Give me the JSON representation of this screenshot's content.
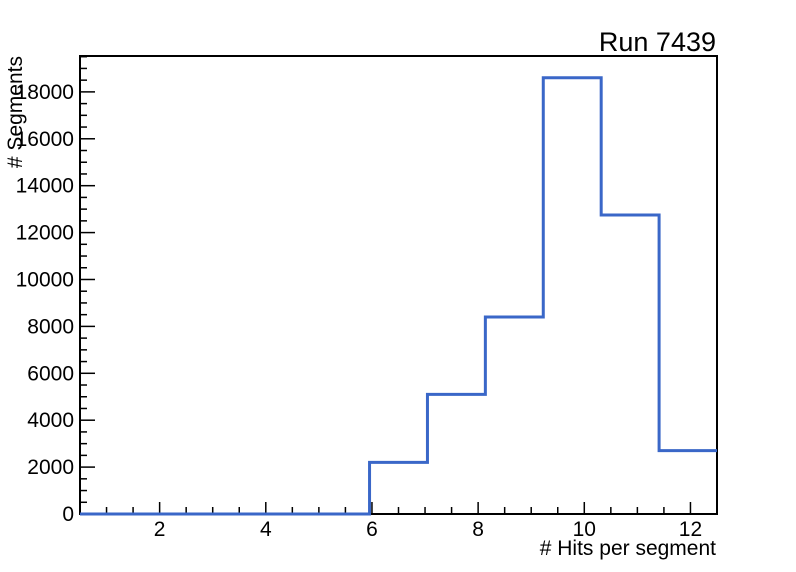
{
  "page": {
    "background": "#ffffff"
  },
  "chart_data": {
    "type": "bar",
    "subtype": "step-histogram-outline",
    "title": "Run 7439",
    "xlabel": "# Hits per segment",
    "ylabel": "# Segments",
    "xlim": [
      0.5,
      12.5
    ],
    "ylim": [
      0,
      19530
    ],
    "grid": false,
    "legend": "none",
    "bin_edges": [
      0.5,
      1.5909,
      2.6818,
      3.7727,
      4.8636,
      5.9545,
      7.0455,
      8.1364,
      9.2273,
      10.3182,
      11.4091,
      12.5
    ],
    "counts": [
      0,
      0,
      0,
      0,
      0,
      2200,
      5100,
      8400,
      18600,
      12750,
      2700
    ],
    "x_tick_labels": [
      2,
      4,
      6,
      8,
      10,
      12
    ],
    "x_minor_tick_step": 0.5,
    "y_tick_labels": [
      0,
      2000,
      4000,
      6000,
      8000,
      10000,
      12000,
      14000,
      16000,
      18000
    ],
    "y_major_tick_step": 2000,
    "y_minor_tick_step": 500,
    "line_color": "#3a67c8",
    "axis_color": "#000000",
    "text_color": "#000000"
  }
}
